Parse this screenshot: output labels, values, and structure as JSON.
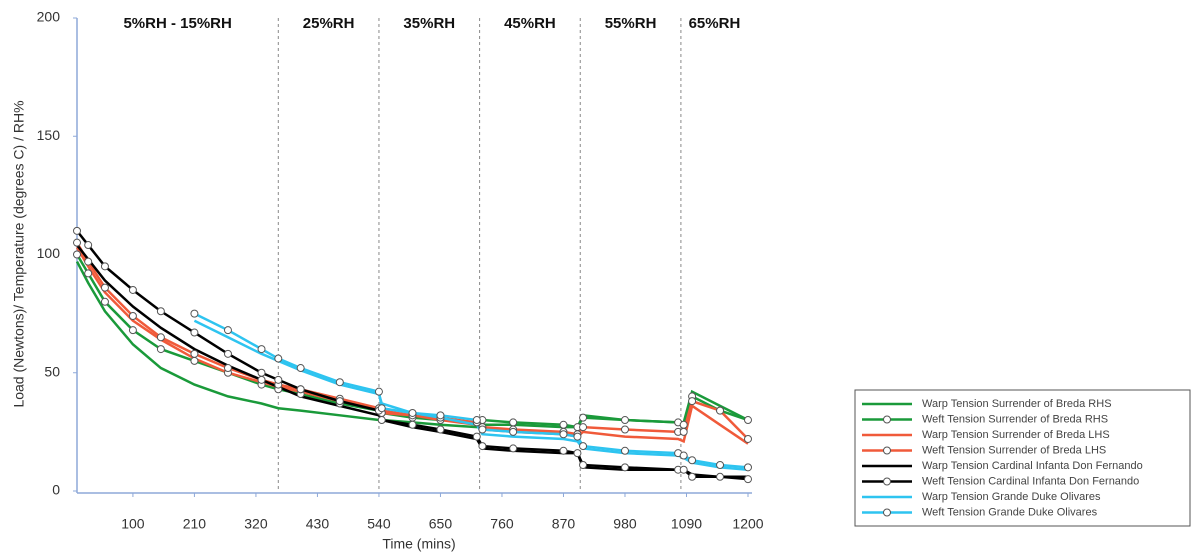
{
  "chart_data": {
    "type": "line",
    "x_label": "Time (mins)",
    "y_label": "Load (Newtons)/ Temperature (degrees C) / RH%",
    "xlim": [
      0,
      1200
    ],
    "xticks": [
      100,
      210,
      320,
      430,
      540,
      650,
      760,
      870,
      980,
      1090,
      1200
    ],
    "ylim": [
      0,
      200
    ],
    "yticks": [
      0,
      50,
      100,
      150,
      200
    ],
    "phase_boundaries": [
      360,
      540,
      720,
      900,
      1080
    ],
    "phase_labels": [
      "5%RH - 15%RH",
      "25%RH",
      "35%RH",
      "45%RH",
      "55%RH",
      "65%RH"
    ],
    "x": [
      0,
      20,
      50,
      100,
      150,
      210,
      270,
      330,
      360,
      400,
      470,
      540,
      545,
      600,
      650,
      715,
      725,
      780,
      870,
      895,
      905,
      980,
      1075,
      1085,
      1100,
      1150,
      1200
    ],
    "series": [
      {
        "name": "Warp Tension Surrender of Breda RHS",
        "color": "#1a9a3a",
        "marker": false,
        "values": [
          97,
          88,
          76,
          62,
          52,
          45,
          40,
          37,
          35,
          34,
          32,
          30,
          30,
          29,
          28,
          27,
          28,
          28,
          27,
          27,
          32,
          30,
          29,
          29,
          42,
          36,
          30
        ]
      },
      {
        "name": "Weft Tension Surrender of Breda RHS",
        "color": "#1a9a3a",
        "marker": true,
        "values": [
          100,
          92,
          80,
          68,
          60,
          55,
          50,
          45,
          43,
          41,
          37,
          34,
          33,
          31,
          30,
          29,
          30,
          29,
          28,
          27,
          31,
          30,
          29,
          28,
          40,
          34,
          30
        ]
      },
      {
        "name": "Warp Tension Surrender of Breda LHS",
        "color": "#f05a3a",
        "marker": false,
        "values": [
          103,
          95,
          84,
          72,
          64,
          56,
          50,
          46,
          44,
          42,
          38,
          35,
          34,
          32,
          30,
          28,
          26,
          25,
          24,
          23,
          25,
          23,
          22,
          21,
          36,
          28,
          20
        ]
      },
      {
        "name": "Weft Tension Surrender of Breda LHS",
        "color": "#f05a3a",
        "marker": true,
        "values": [
          105,
          97,
          86,
          74,
          65,
          58,
          52,
          47,
          45,
          43,
          39,
          35,
          33,
          32,
          31,
          29,
          27,
          26,
          25,
          24,
          27,
          26,
          25,
          25,
          38,
          34,
          22
        ]
      },
      {
        "name": "Warp Tension  Cardinal Infanta Don Fernando",
        "color": "#000000",
        "marker": false,
        "values": [
          104,
          98,
          89,
          78,
          69,
          60,
          53,
          47,
          44,
          40,
          36,
          32,
          30,
          27,
          25,
          22,
          18,
          17,
          16,
          16,
          10,
          9,
          9,
          9,
          7,
          6,
          6
        ]
      },
      {
        "name": "Weft Tension Cardinal Infanta Don Fernando",
        "color": "#000000",
        "marker": true,
        "values": [
          110,
          104,
          95,
          85,
          76,
          67,
          58,
          50,
          47,
          43,
          38,
          34,
          30,
          28,
          26,
          23,
          19,
          18,
          17,
          16,
          11,
          10,
          9,
          9,
          6,
          6,
          5
        ]
      },
      {
        "name": "Warp Tension Grande Duke Olivares",
        "color": "#2ec4f0",
        "marker": false,
        "values": [
          null,
          null,
          null,
          null,
          null,
          72,
          65,
          58,
          55,
          51,
          45,
          41,
          37,
          33,
          31,
          28,
          24,
          23,
          22,
          21,
          18,
          16,
          15,
          14,
          12,
          10,
          9
        ]
      },
      {
        "name": "Weft Tension Grande Duke Olivares",
        "color": "#2ec4f0",
        "marker": true,
        "values": [
          null,
          null,
          null,
          null,
          null,
          75,
          68,
          60,
          56,
          52,
          46,
          42,
          35,
          33,
          32,
          30,
          26,
          25,
          24,
          23,
          19,
          17,
          16,
          15,
          13,
          11,
          10
        ]
      }
    ]
  }
}
